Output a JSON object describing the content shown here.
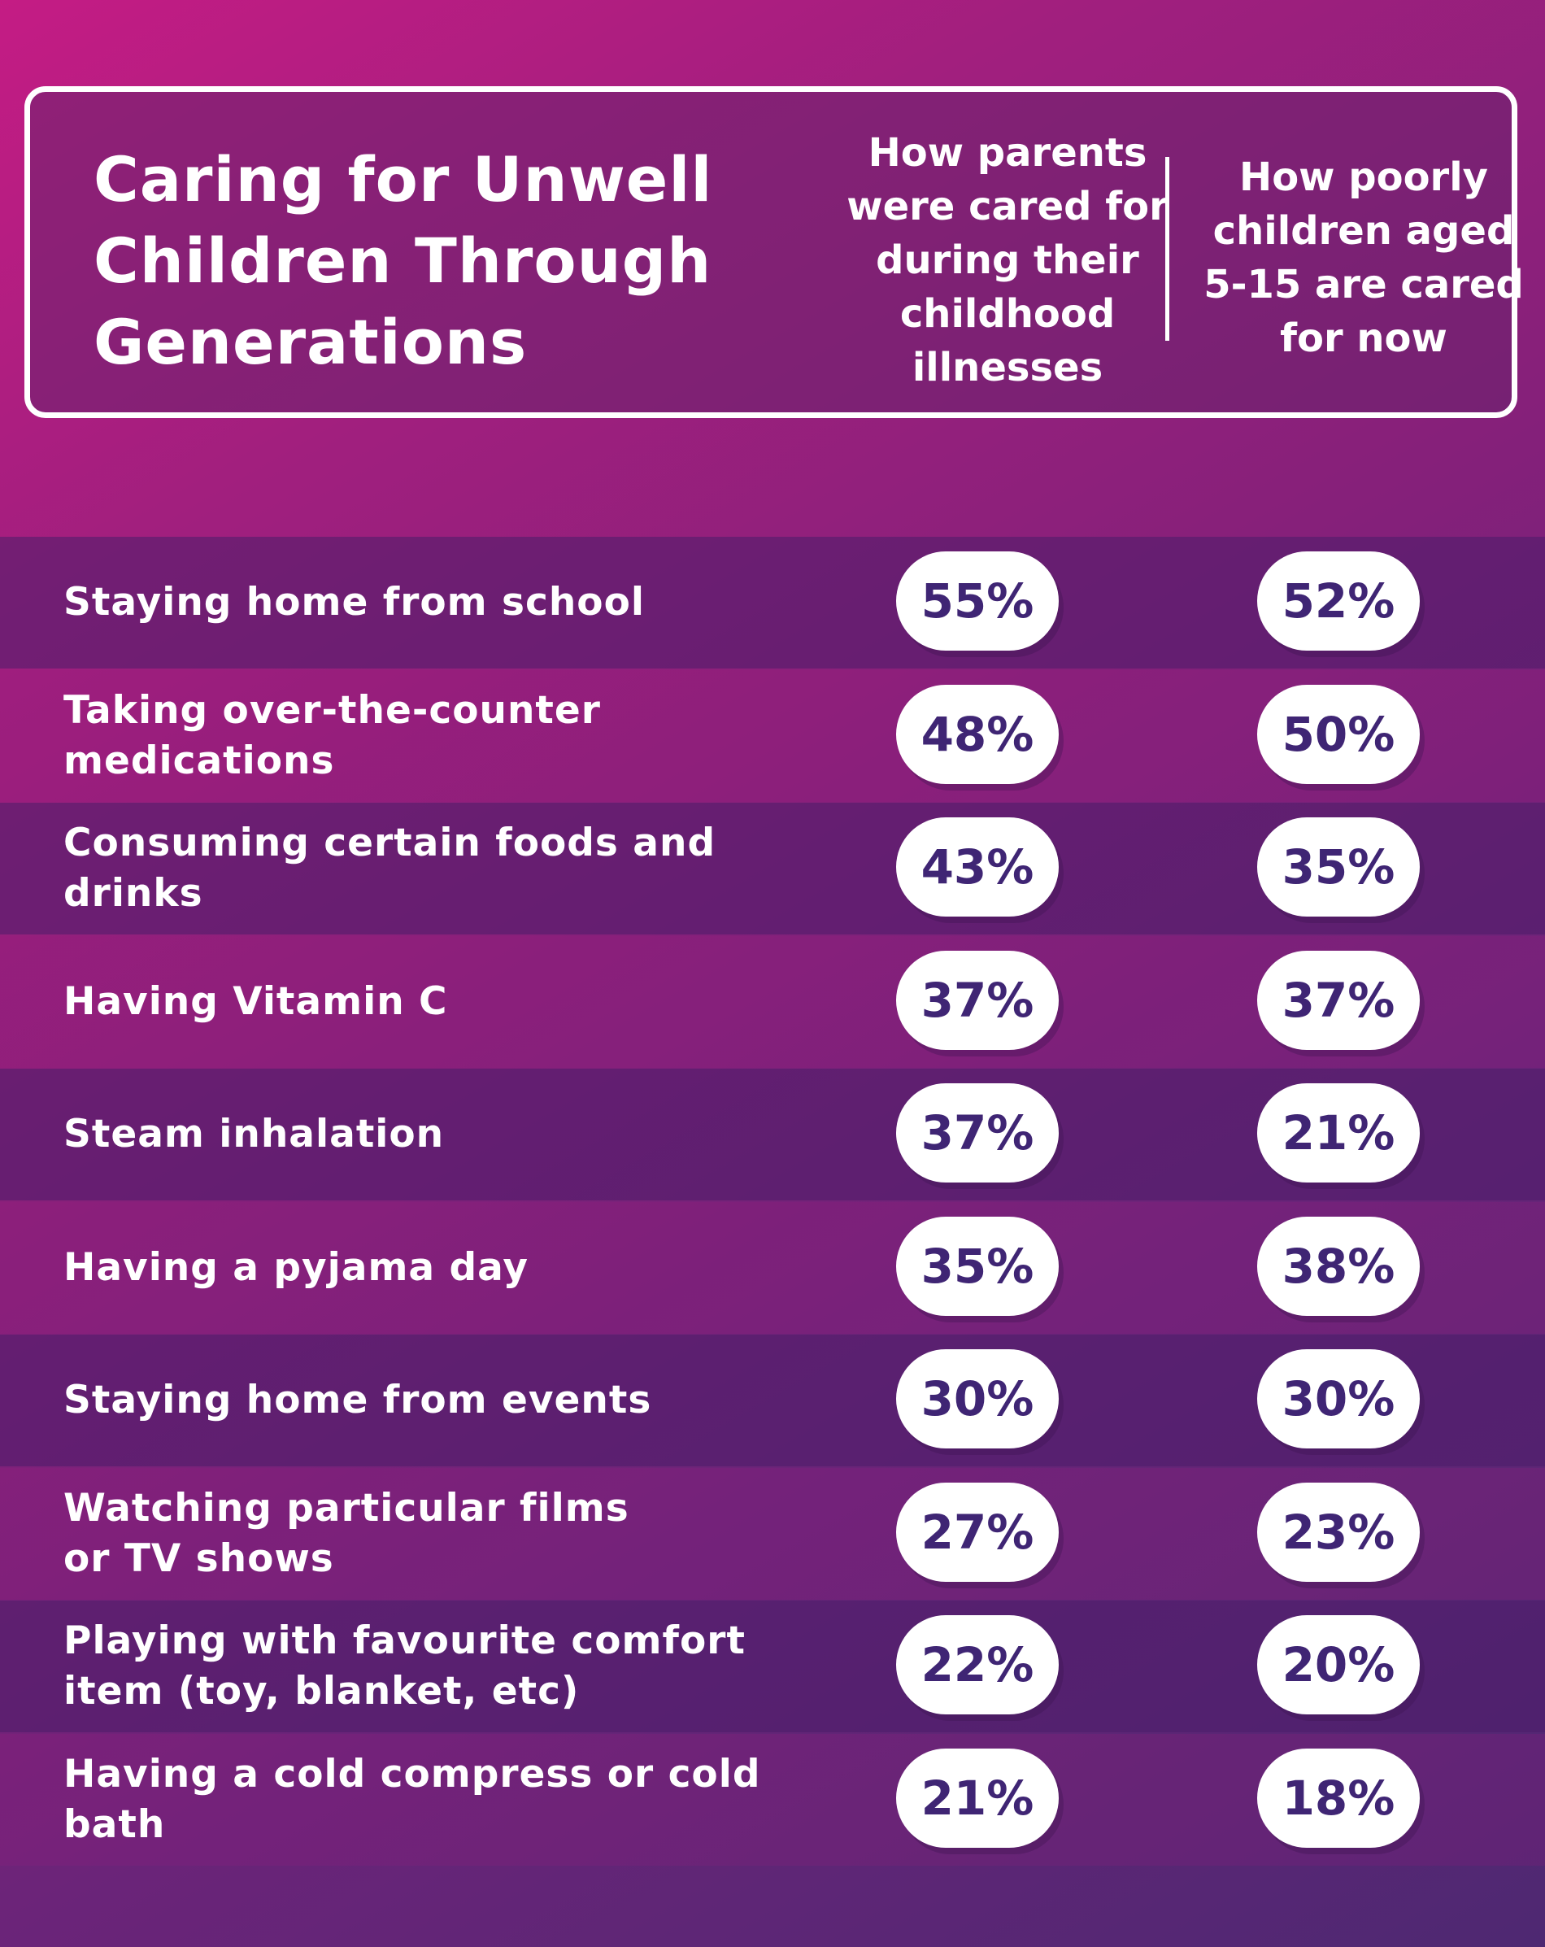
{
  "header": {
    "title": "Caring for Unwell\nChildren Through\nGenerations",
    "col_a": "How parents\nwere cared for\nduring their\nchildhood\nillnesses",
    "col_b": "How poorly\nchildren aged\n5-15 are cared\nfor now"
  },
  "chart_data": {
    "type": "table",
    "title": "Caring for Unwell Children Through Generations",
    "columns": [
      "How parents were cared for during their childhood illnesses",
      "How poorly children aged 5-15 are cared for now"
    ],
    "rows": [
      {
        "label": "Staying home from school",
        "a": "55%",
        "b": "52%",
        "a_value": 55,
        "b_value": 52
      },
      {
        "label": "Taking over-the-counter\nmedications",
        "a": "48%",
        "b": "50%",
        "a_value": 48,
        "b_value": 50
      },
      {
        "label": "Consuming certain foods and drinks",
        "a": "43%",
        "b": "35%",
        "a_value": 43,
        "b_value": 35
      },
      {
        "label": "Having Vitamin C",
        "a": "37%",
        "b": "37%",
        "a_value": 37,
        "b_value": 37
      },
      {
        "label": "Steam inhalation",
        "a": "37%",
        "b": "21%",
        "a_value": 37,
        "b_value": 21
      },
      {
        "label": "Having a pyjama day",
        "a": "35%",
        "b": "38%",
        "a_value": 35,
        "b_value": 38
      },
      {
        "label": "Staying home from events",
        "a": "30%",
        "b": "30%",
        "a_value": 30,
        "b_value": 30
      },
      {
        "label": "Watching particular films\nor TV shows",
        "a": "27%",
        "b": "23%",
        "a_value": 27,
        "b_value": 23
      },
      {
        "label": "Playing with favourite comfort\nitem (toy, blanket, etc)",
        "a": "22%",
        "b": "20%",
        "a_value": 22,
        "b_value": 20
      },
      {
        "label": "Having a cold compress or cold bath",
        "a": "21%",
        "b": "18%",
        "a_value": 21,
        "b_value": 18
      }
    ]
  },
  "colors": {
    "background_top": "#c41c84",
    "background_bottom": "#4e2872",
    "pill_text": "#3f2574",
    "pill_bg": "#ffffff"
  }
}
